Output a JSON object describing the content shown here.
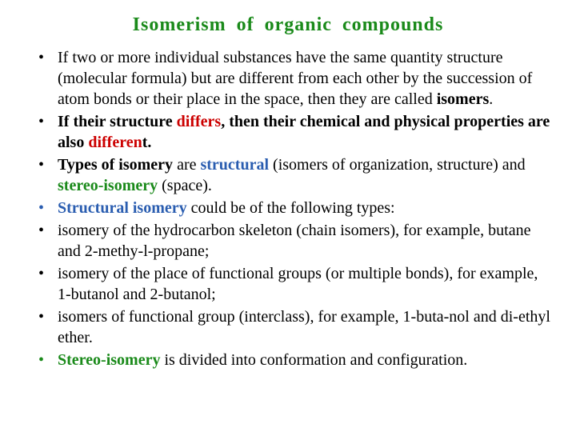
{
  "colors": {
    "title": "#1a8a1a",
    "text": "#000000",
    "black_bullet": "#000000",
    "green_bullet": "#1a8a1a",
    "blue_bullet": "#2a5db0",
    "red": "#cc0000",
    "green": "#1a8a1a",
    "blue": "#2a5db0"
  },
  "typography": {
    "title_fontsize": 24,
    "body_fontsize": 20,
    "font_family": "Times New Roman"
  },
  "title": "Isomerism  of  organic  compounds",
  "bullets": [
    {
      "bullet_color": "black_bullet",
      "runs": [
        {
          "t": "If two or more individual substances have the same quantity structure (molecular formula) but are different from each other by the succession of atom bonds or their place in the space, then they are called ",
          "b": false,
          "c": "text"
        },
        {
          "t": "isomers",
          "b": true,
          "c": "text"
        },
        {
          "t": ".",
          "b": false,
          "c": "text"
        }
      ]
    },
    {
      "bullet_color": "black_bullet",
      "runs": [
        {
          "t": "If their structure ",
          "b": true,
          "c": "text"
        },
        {
          "t": "differs",
          "b": true,
          "c": "red"
        },
        {
          "t": ", then their chemical and physical properties are also ",
          "b": true,
          "c": "text"
        },
        {
          "t": "differen",
          "b": true,
          "c": "red"
        },
        {
          "t": "t.",
          "b": true,
          "c": "text"
        }
      ]
    },
    {
      "bullet_color": "black_bullet",
      "runs": [
        {
          "t": "Types of isomery",
          "b": true,
          "c": "text"
        },
        {
          "t": " are ",
          "b": false,
          "c": "text"
        },
        {
          "t": "structural",
          "b": true,
          "c": "blue"
        },
        {
          "t": " (isomers of organization, structure) and ",
          "b": false,
          "c": "text"
        },
        {
          "t": "stereo-isomery",
          "b": true,
          "c": "green"
        },
        {
          "t": " (space).",
          "b": false,
          "c": "text"
        }
      ]
    },
    {
      "bullet_color": "blue_bullet",
      "runs": [
        {
          "t": "Structural isomery",
          "b": true,
          "c": "blue"
        },
        {
          "t": " could be of the following types:",
          "b": false,
          "c": "text"
        }
      ]
    },
    {
      "bullet_color": "black_bullet",
      "runs": [
        {
          "t": "isomery of the hydrocarbon skeleton (chain isomers), for example, butane and 2-methy-l-propane;",
          "b": false,
          "c": "text"
        }
      ]
    },
    {
      "bullet_color": "black_bullet",
      "runs": [
        {
          "t": "isomery of the place of functional groups (or multiple bonds), for example, 1-butanol and 2-butanol;",
          "b": false,
          "c": "text"
        }
      ]
    },
    {
      "bullet_color": "black_bullet",
      "runs": [
        {
          "t": "isomers of functional group (interclass), for example, 1-buta-nol and di-ethyl ether.",
          "b": false,
          "c": "text"
        }
      ]
    },
    {
      "bullet_color": "green_bullet",
      "runs": [
        {
          "t": "Stereo-isomery",
          "b": true,
          "c": "green"
        },
        {
          "t": " is divided into conformation and configuration.",
          "b": false,
          "c": "text"
        }
      ]
    }
  ]
}
